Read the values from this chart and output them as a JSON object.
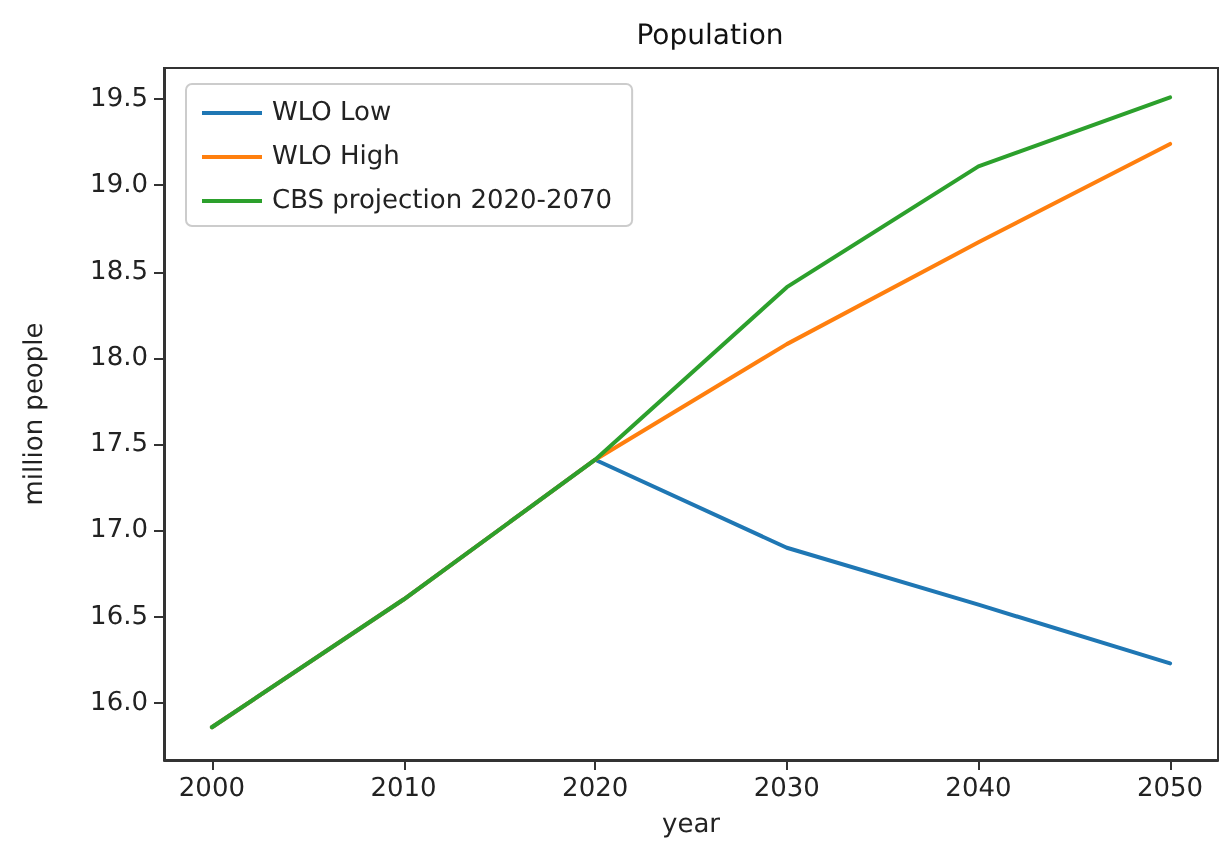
{
  "chart_data": {
    "type": "line",
    "title": "Population",
    "xlabel": "year",
    "ylabel": "million people",
    "x": [
      2000,
      2010,
      2020,
      2030,
      2040,
      2050
    ],
    "series": [
      {
        "name": "WLO Low",
        "color": "#1f77b4",
        "values": [
          15.86,
          16.6,
          17.41,
          16.9,
          16.57,
          16.23
        ]
      },
      {
        "name": "WLO High",
        "color": "#ff7f0e",
        "values": [
          15.86,
          16.6,
          17.41,
          18.08,
          18.67,
          19.24
        ]
      },
      {
        "name": "CBS projection 2020-2070",
        "color": "#2ca02c",
        "values": [
          15.86,
          16.6,
          17.41,
          18.41,
          19.11,
          19.51
        ]
      }
    ],
    "xlim": [
      1997.5,
      2052.5
    ],
    "xticks": [
      2000,
      2010,
      2020,
      2030,
      2040,
      2050
    ],
    "ylim": [
      15.67,
      19.68
    ],
    "yticks": [
      {
        "value": 16,
        "label": "16.0"
      },
      16.5,
      {
        "value": 17,
        "label": "17.0"
      },
      17.5,
      {
        "value": 18,
        "label": "18.0"
      },
      18.5,
      {
        "value": 19,
        "label": "19.0"
      },
      19.5
    ],
    "grid": false,
    "legend": "top left",
    "marker": "none",
    "line_style": "solid"
  }
}
